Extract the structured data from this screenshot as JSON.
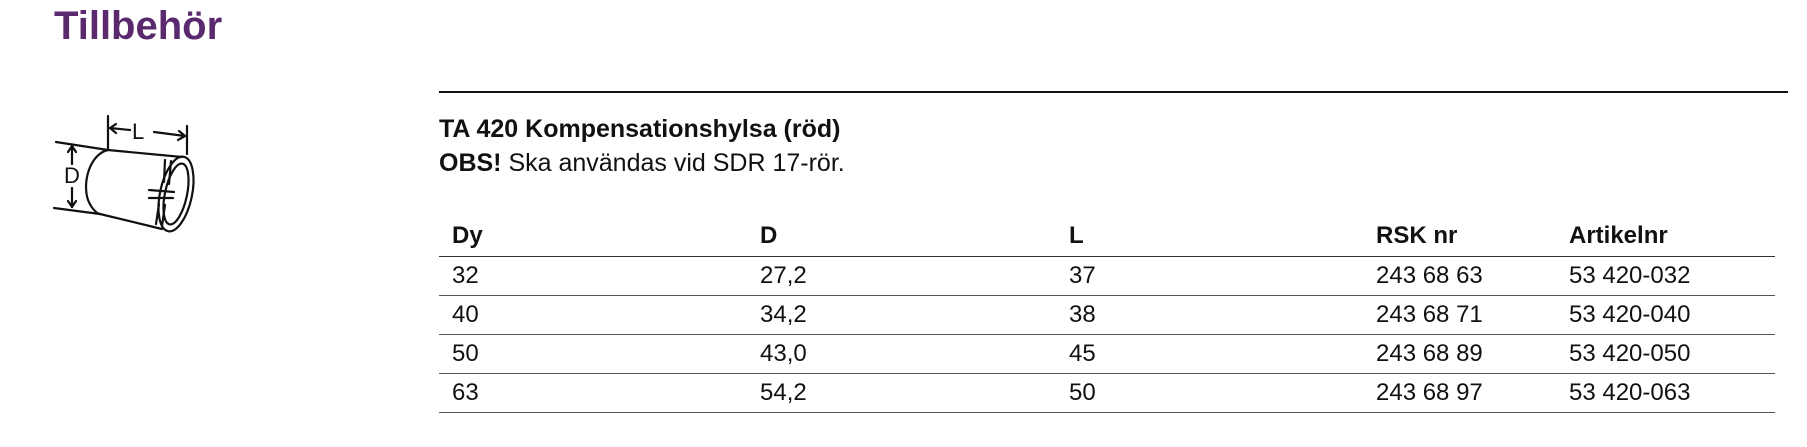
{
  "page": {
    "heading": "Tillbehör"
  },
  "illustration": {
    "icon": "compensation-sleeve-drawing",
    "label_length": "L",
    "label_diameter": "D"
  },
  "product": {
    "title": "TA 420 Kompensationshylsa (röd)",
    "note_emphasis": "OBS!",
    "note_text": " Ska användas vid SDR 17-rör."
  },
  "table": {
    "columns": [
      "Dy",
      "D",
      "L",
      "RSK nr",
      "Artikelnr"
    ],
    "rows": [
      [
        "32",
        "27,2",
        "37",
        "243 68 63",
        "53 420-032"
      ],
      [
        "40",
        "34,2",
        "38",
        "243 68 71",
        "53 420-040"
      ],
      [
        "50",
        "43,0",
        "45",
        "243 68 89",
        "53 420-050"
      ],
      [
        "63",
        "54,2",
        "50",
        "243 68 97",
        "53 420-063"
      ]
    ]
  },
  "colors": {
    "heading": "#5b2a6e",
    "text": "#111111"
  }
}
